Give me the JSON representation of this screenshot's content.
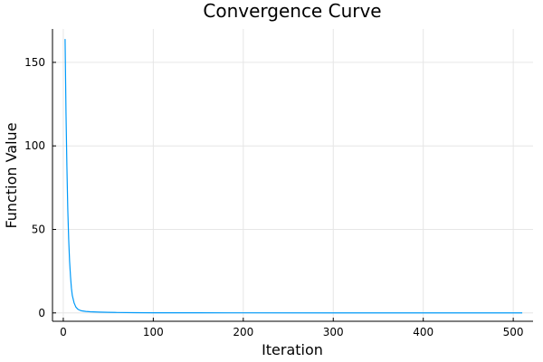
{
  "chart_data": {
    "type": "line",
    "title": "Convergence Curve",
    "xlabel": "Iteration",
    "ylabel": "Function Value",
    "xlim": [
      -12,
      522
    ],
    "ylim": [
      -5,
      170
    ],
    "xticks": [
      0,
      100,
      200,
      300,
      400,
      500
    ],
    "yticks": [
      0,
      50,
      100,
      150
    ],
    "grid": true,
    "legend": "none",
    "series": [
      {
        "color": "#009af9",
        "x": [
          2,
          3,
          4,
          5,
          6,
          7,
          8,
          9,
          10,
          12,
          14,
          16,
          18,
          20,
          25,
          30,
          40,
          50,
          60,
          80,
          100,
          150,
          200,
          300,
          400,
          510
        ],
        "y": [
          164,
          120,
          88,
          62,
          44,
          31,
          22,
          15,
          10.5,
          6,
          3.5,
          2.3,
          1.7,
          1.3,
          0.9,
          0.7,
          0.5,
          0.35,
          0.25,
          0.15,
          0.1,
          0.06,
          0.04,
          0.02,
          0.01,
          0.005
        ]
      }
    ]
  }
}
